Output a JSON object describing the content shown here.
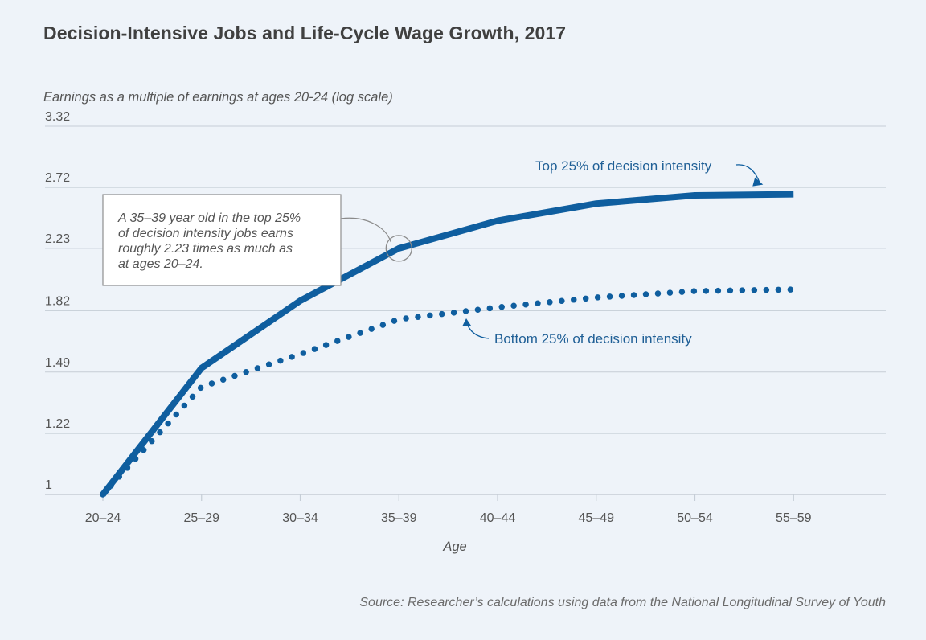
{
  "chart_data": {
    "type": "line",
    "title": "Decision-Intensive Jobs and Life-Cycle Wage Growth, 2017",
    "ylabel": "Earnings as a multiple of earnings at ages 20-24 (log scale)",
    "xlabel": "Age",
    "yscale": "log",
    "ylim": [
      1,
      3.32
    ],
    "yticks": [
      "3.32",
      "2.72",
      "2.23",
      "1.82",
      "1.49",
      "1.22",
      "1"
    ],
    "ytick_values": [
      3.32,
      2.72,
      2.23,
      1.82,
      1.49,
      1.22,
      1
    ],
    "categories": [
      "20–24",
      "25–29",
      "30–34",
      "35–39",
      "40–44",
      "45–49",
      "50–54",
      "55–59"
    ],
    "grid": "horizontal",
    "series": [
      {
        "name": "Top 25% of decision intensity",
        "style": "solid",
        "color": "#0f5e9f",
        "values": [
          1.0,
          1.51,
          1.88,
          2.23,
          2.44,
          2.58,
          2.65,
          2.66
        ]
      },
      {
        "name": "Bottom 25% of decision intensity",
        "style": "dotted",
        "color": "#0f5e9f",
        "values": [
          1.0,
          1.42,
          1.58,
          1.77,
          1.84,
          1.9,
          1.94,
          1.95
        ]
      }
    ],
    "annotation": {
      "lines": [
        "A 35–39 year old in the top 25%",
        "of decision intensity jobs earns",
        "roughly 2.23 times as much as",
        "at ages 20–24."
      ],
      "target_category": "35–39",
      "target_value": 2.23
    },
    "source": "Source: Researcher’s calculations using data from the National Longitudinal Survey of Youth"
  },
  "colors": {
    "background": "#eef3f9",
    "gridline": "#c5cdd6",
    "series": "#0f5e9f",
    "label_text": "#1f5f96"
  }
}
